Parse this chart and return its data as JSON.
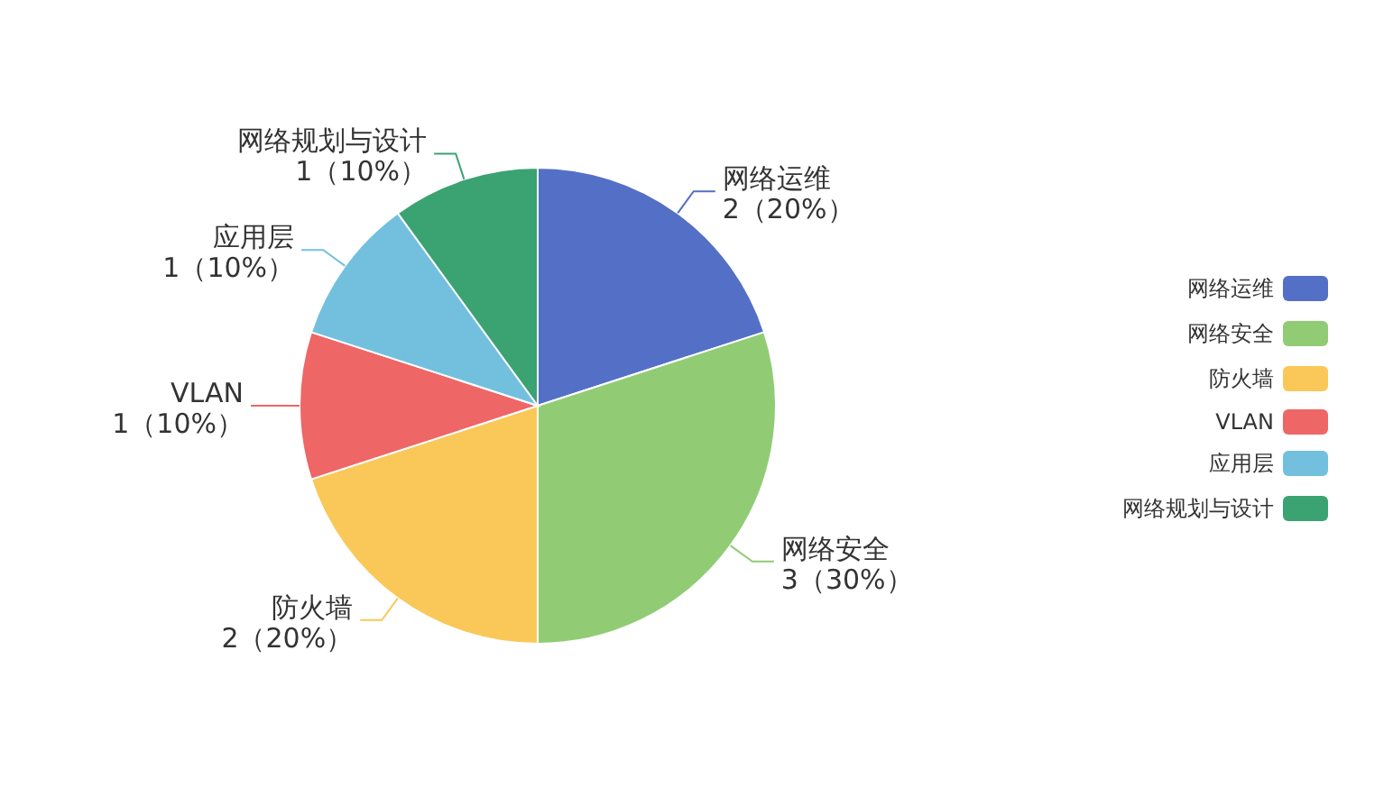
{
  "chart_data": {
    "type": "pie",
    "categories": [
      "网络运维",
      "网络安全",
      "防火墙",
      "VLAN",
      "应用层",
      "网络规划与设计"
    ],
    "values": [
      2,
      3,
      2,
      1,
      1,
      1
    ],
    "colors": [
      "#5470c6",
      "#91cc75",
      "#fac858",
      "#ee6666",
      "#73c0de",
      "#3ba272"
    ],
    "value_labels": [
      "2（20%）",
      "3（30%）",
      "2（20%）",
      "1（10%）",
      "1（10%）",
      "1（10%）"
    ],
    "legend": "right"
  }
}
